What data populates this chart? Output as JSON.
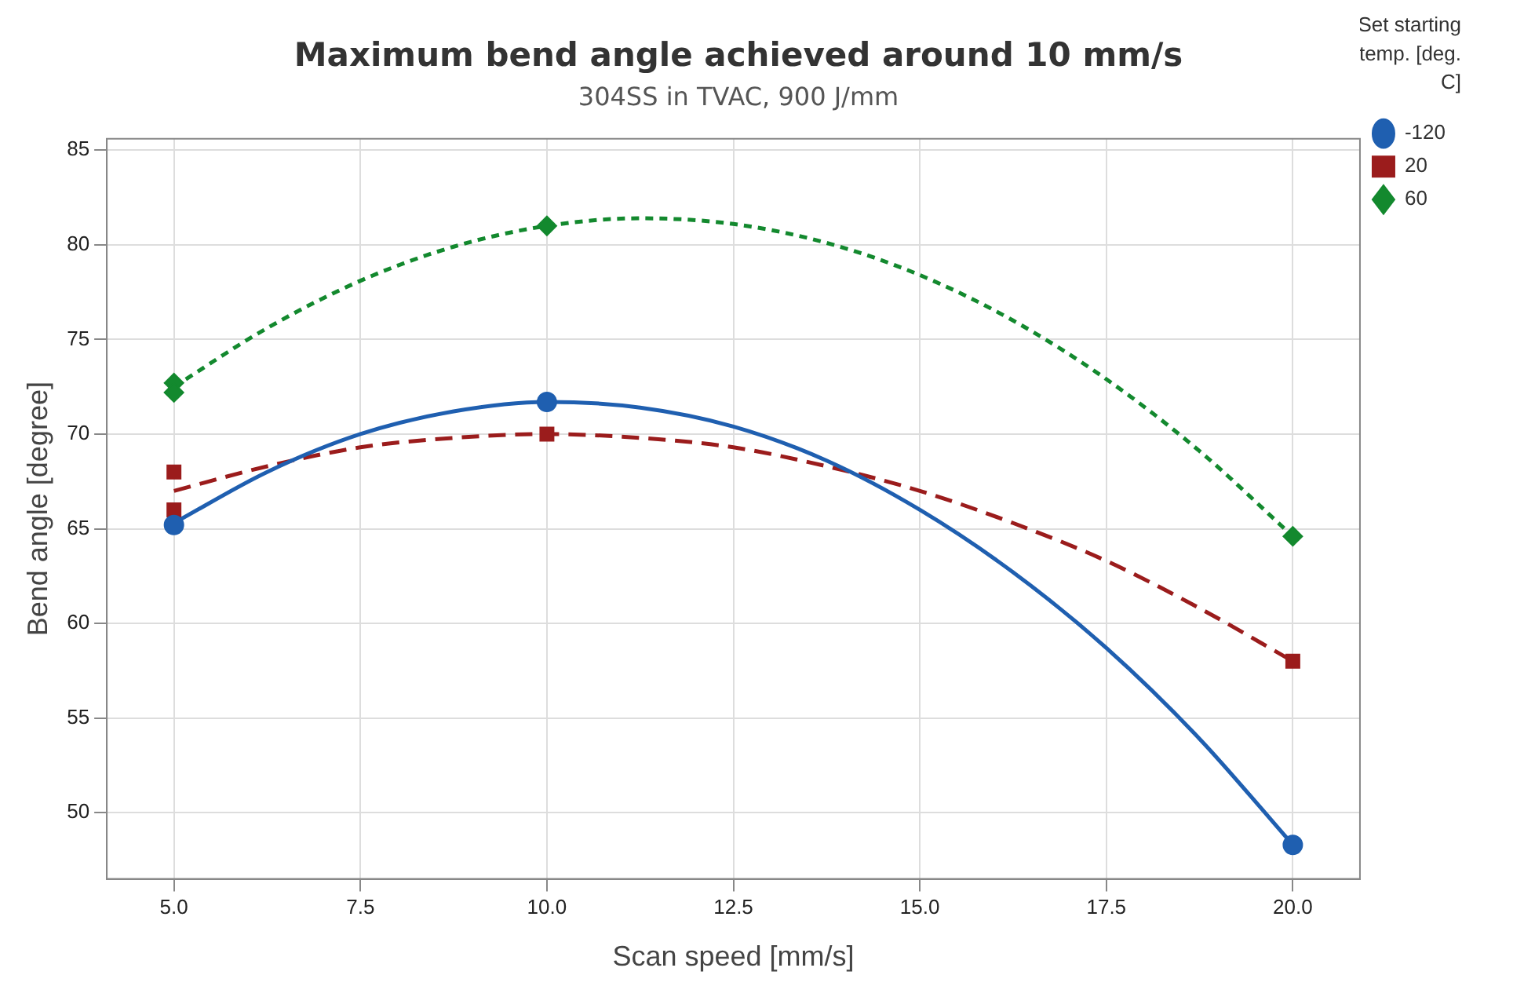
{
  "chart_data": {
    "type": "scatter",
    "title": "Maximum bend angle achieved around 10 mm/s",
    "subtitle": "304SS in TVAC, 900 J/mm",
    "xlabel": "Scan speed [mm/s]",
    "ylabel": "Bend angle [degree]",
    "legend_title": "Set starting temp. [deg. C]",
    "xlim": [
      4.1,
      20.9
    ],
    "xticks": [
      {
        "value": 5,
        "label": "5.0"
      },
      {
        "value": 7.5,
        "label": "7.5"
      },
      {
        "value": 10,
        "label": "10.0"
      },
      {
        "value": 12.5,
        "label": "12.5"
      },
      {
        "value": 15,
        "label": "15.0"
      },
      {
        "value": 17.5,
        "label": "17.5"
      },
      {
        "value": 20,
        "label": "20.0"
      }
    ],
    "ylim": [
      46.5,
      85.6
    ],
    "yticks": [
      50,
      55,
      60,
      65,
      70,
      75,
      80,
      85
    ],
    "grid": true,
    "legend": "right",
    "series": [
      {
        "name": "-120",
        "type": "scatter",
        "color": "#1f5fb0",
        "marker": "circle",
        "x": [
          5,
          10,
          20
        ],
        "values": [
          65.2,
          71.7,
          48.3
        ]
      },
      {
        "name": "20",
        "type": "scatter",
        "color": "#9b1c1c",
        "marker": "square",
        "x": [
          5,
          5,
          10,
          20
        ],
        "values": [
          68,
          66,
          70,
          58
        ]
      },
      {
        "name": "60",
        "type": "scatter",
        "color": "#13892e",
        "marker": "diamond",
        "x": [
          5,
          5,
          10,
          20
        ],
        "values": [
          72.7,
          72.2,
          81,
          64.6
        ]
      },
      {
        "type": "line",
        "color": "#1f5fb0",
        "marker": "none",
        "line_style": "solid",
        "x": [
          5,
          6.25,
          7.5,
          8.75,
          10,
          11.25,
          12.5,
          13.75,
          15,
          16.25,
          17.5,
          18.75,
          20
        ],
        "values": [
          65.3,
          68.0,
          70.0,
          71.2,
          71.7,
          71.4,
          70.4,
          68.6,
          66.0,
          62.7,
          58.7,
          53.9,
          48.3
        ]
      },
      {
        "type": "line",
        "color": "#9b1c1c",
        "marker": "none",
        "line_style": "dashed",
        "x": [
          5,
          6.25,
          7.5,
          8.75,
          10,
          11.25,
          12.5,
          13.75,
          15,
          16.25,
          17.5,
          18.75,
          20
        ],
        "values": [
          67.0,
          68.3,
          69.3,
          69.8,
          70.0,
          69.8,
          69.3,
          68.3,
          67.0,
          65.3,
          63.3,
          60.8,
          58.0
        ]
      },
      {
        "type": "line",
        "color": "#13892e",
        "marker": "none",
        "line_style": "dotted",
        "x": [
          5,
          6.25,
          7.5,
          8.75,
          10,
          11.25,
          12.5,
          13.75,
          15,
          16.25,
          17.5,
          18.75,
          20
        ],
        "values": [
          72.5,
          75.6,
          78.1,
          79.9,
          81.0,
          81.4,
          81.1,
          80.1,
          78.4,
          76.0,
          72.9,
          69.1,
          64.6
        ]
      }
    ]
  }
}
